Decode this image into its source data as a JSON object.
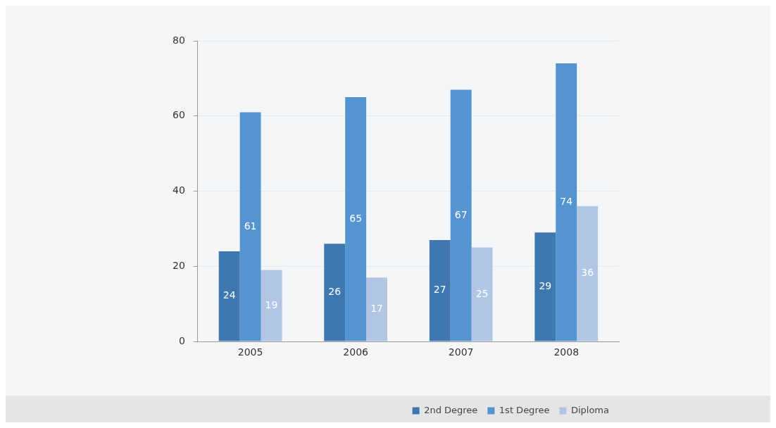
{
  "chart_data": {
    "type": "bar",
    "categories": [
      "2005",
      "2006",
      "2007",
      "2008"
    ],
    "series": [
      {
        "name": "2nd Degree",
        "color": "#3f77b1",
        "values": [
          24,
          26,
          27,
          29
        ]
      },
      {
        "name": "1st Degree",
        "color": "#5394d1",
        "values": [
          61,
          65,
          67,
          74
        ]
      },
      {
        "name": "Diploma",
        "color": "#b1c5e4",
        "values": [
          19,
          17,
          25,
          36
        ]
      }
    ],
    "ylim": [
      0,
      80
    ],
    "yticks": [
      0,
      20,
      40,
      60,
      80
    ],
    "grid": "y",
    "legend": "bottom right",
    "data_labels": true
  }
}
